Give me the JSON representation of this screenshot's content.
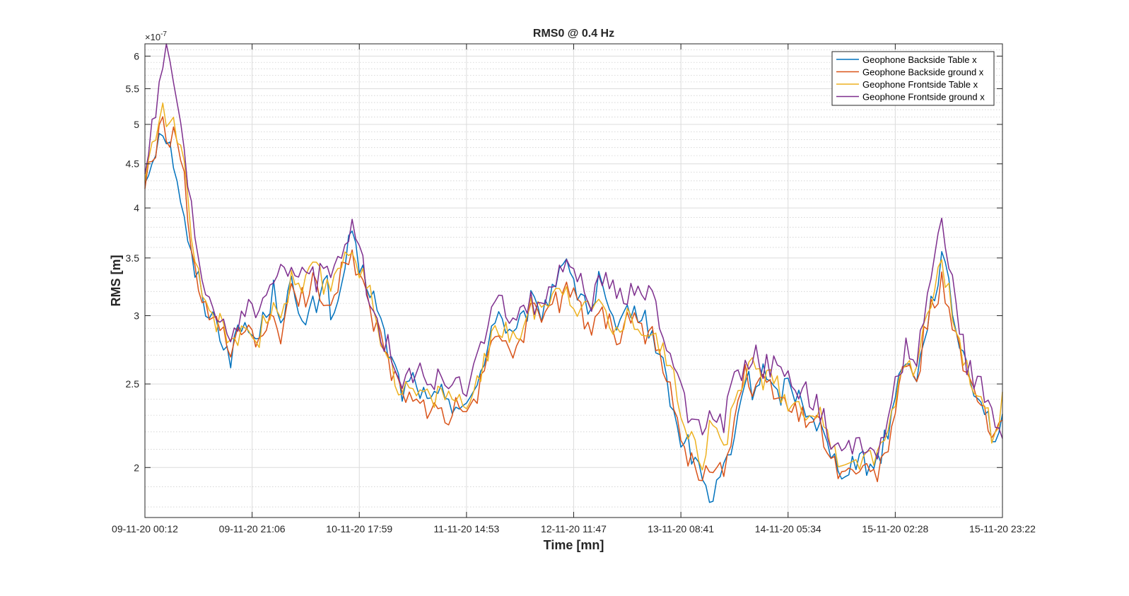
{
  "chart_data": {
    "type": "line",
    "title": "RMS0 @ 0.4 Hz",
    "xlabel": "Time [mn]",
    "ylabel": "RMS [m]",
    "y_scale": "log",
    "y_exponent_label": "×10",
    "y_exponent_power": "-7",
    "ylim": [
      1.75,
      6.2
    ],
    "y_ticks": [
      2,
      2.5,
      3,
      3.5,
      4,
      4.5,
      5,
      5.5,
      6
    ],
    "y_tick_labels": [
      "2",
      "2.5",
      "3",
      "3.5",
      "4",
      "4.5",
      "5",
      "5.5",
      "6"
    ],
    "x_tick_labels": [
      "09-11-20 00:12",
      "09-11-20 21:06",
      "10-11-20 17:59",
      "11-11-20 14:53",
      "12-11-20 11:47",
      "13-11-20 08:41",
      "14-11-20 05:34",
      "15-11-20 02:28",
      "15-11-20 23:22"
    ],
    "grid": true,
    "minor_grid": true,
    "legend_position": "top-right",
    "series": [
      {
        "name": "Geophone Backside Table x",
        "color": "#0072BD",
        "anchors": [
          [
            0,
            4.3
          ],
          [
            0.02,
            5.0
          ],
          [
            0.035,
            4.5
          ],
          [
            0.05,
            3.6
          ],
          [
            0.07,
            3.1
          ],
          [
            0.09,
            2.85
          ],
          [
            0.1,
            2.7
          ],
          [
            0.115,
            2.95
          ],
          [
            0.13,
            2.8
          ],
          [
            0.15,
            3.2
          ],
          [
            0.16,
            3.0
          ],
          [
            0.17,
            3.3
          ],
          [
            0.18,
            2.9
          ],
          [
            0.2,
            3.1
          ],
          [
            0.21,
            3.4
          ],
          [
            0.22,
            2.9
          ],
          [
            0.23,
            3.3
          ],
          [
            0.24,
            3.7
          ],
          [
            0.25,
            3.4
          ],
          [
            0.265,
            3.2
          ],
          [
            0.28,
            2.8
          ],
          [
            0.3,
            2.45
          ],
          [
            0.315,
            2.55
          ],
          [
            0.33,
            2.35
          ],
          [
            0.35,
            2.45
          ],
          [
            0.36,
            2.38
          ],
          [
            0.38,
            2.35
          ],
          [
            0.39,
            2.55
          ],
          [
            0.41,
            3.05
          ],
          [
            0.43,
            2.8
          ],
          [
            0.45,
            3.1
          ],
          [
            0.46,
            3.0
          ],
          [
            0.48,
            3.3
          ],
          [
            0.49,
            3.6
          ],
          [
            0.5,
            3.2
          ],
          [
            0.51,
            3.2
          ],
          [
            0.52,
            3.0
          ],
          [
            0.53,
            3.3
          ],
          [
            0.55,
            2.8
          ],
          [
            0.565,
            3.1
          ],
          [
            0.575,
            3.0
          ],
          [
            0.59,
            2.9
          ],
          [
            0.61,
            2.5
          ],
          [
            0.62,
            2.2
          ],
          [
            0.635,
            2.1
          ],
          [
            0.65,
            1.95
          ],
          [
            0.66,
            1.8
          ],
          [
            0.675,
            2.0
          ],
          [
            0.685,
            2.1
          ],
          [
            0.7,
            2.55
          ],
          [
            0.71,
            2.45
          ],
          [
            0.72,
            2.6
          ],
          [
            0.735,
            2.4
          ],
          [
            0.75,
            2.5
          ],
          [
            0.765,
            2.4
          ],
          [
            0.78,
            2.3
          ],
          [
            0.79,
            2.2
          ],
          [
            0.8,
            2.05
          ],
          [
            0.815,
            2.0
          ],
          [
            0.83,
            2.05
          ],
          [
            0.845,
            2.0
          ],
          [
            0.86,
            2.1
          ],
          [
            0.87,
            2.3
          ],
          [
            0.88,
            2.55
          ],
          [
            0.89,
            2.75
          ],
          [
            0.9,
            2.5
          ],
          [
            0.91,
            2.9
          ],
          [
            0.93,
            3.5
          ],
          [
            0.94,
            3.1
          ],
          [
            0.95,
            2.8
          ],
          [
            0.96,
            2.6
          ],
          [
            0.97,
            2.45
          ],
          [
            0.98,
            2.35
          ],
          [
            0.99,
            2.15
          ],
          [
            1.0,
            2.25
          ]
        ]
      },
      {
        "name": "Geophone Backside ground x",
        "color": "#D95319",
        "anchors": [
          [
            0,
            4.25
          ],
          [
            0.02,
            4.95
          ],
          [
            0.035,
            4.8
          ],
          [
            0.045,
            4.4
          ],
          [
            0.055,
            3.4
          ],
          [
            0.07,
            3.05
          ],
          [
            0.09,
            2.85
          ],
          [
            0.1,
            2.7
          ],
          [
            0.115,
            2.9
          ],
          [
            0.13,
            2.75
          ],
          [
            0.15,
            3.05
          ],
          [
            0.16,
            2.8
          ],
          [
            0.17,
            3.2
          ],
          [
            0.18,
            3.1
          ],
          [
            0.2,
            3.3
          ],
          [
            0.21,
            3.1
          ],
          [
            0.22,
            3.2
          ],
          [
            0.23,
            3.4
          ],
          [
            0.24,
            3.6
          ],
          [
            0.25,
            3.3
          ],
          [
            0.265,
            3.0
          ],
          [
            0.28,
            2.7
          ],
          [
            0.3,
            2.4
          ],
          [
            0.315,
            2.45
          ],
          [
            0.33,
            2.3
          ],
          [
            0.35,
            2.3
          ],
          [
            0.36,
            2.35
          ],
          [
            0.38,
            2.33
          ],
          [
            0.39,
            2.45
          ],
          [
            0.41,
            2.9
          ],
          [
            0.43,
            2.7
          ],
          [
            0.45,
            3.0
          ],
          [
            0.46,
            3.0
          ],
          [
            0.48,
            3.1
          ],
          [
            0.49,
            3.2
          ],
          [
            0.5,
            3.2
          ],
          [
            0.51,
            3.0
          ],
          [
            0.52,
            2.9
          ],
          [
            0.53,
            3.1
          ],
          [
            0.55,
            2.8
          ],
          [
            0.565,
            3.0
          ],
          [
            0.575,
            2.9
          ],
          [
            0.59,
            2.85
          ],
          [
            0.61,
            2.5
          ],
          [
            0.62,
            2.3
          ],
          [
            0.635,
            2.05
          ],
          [
            0.65,
            1.9
          ],
          [
            0.66,
            2.05
          ],
          [
            0.675,
            2.0
          ],
          [
            0.685,
            2.2
          ],
          [
            0.7,
            2.6
          ],
          [
            0.71,
            2.4
          ],
          [
            0.72,
            2.5
          ],
          [
            0.735,
            2.45
          ],
          [
            0.75,
            2.35
          ],
          [
            0.765,
            2.3
          ],
          [
            0.78,
            2.3
          ],
          [
            0.79,
            2.2
          ],
          [
            0.8,
            2.05
          ],
          [
            0.815,
            1.95
          ],
          [
            0.83,
            2.0
          ],
          [
            0.845,
            1.95
          ],
          [
            0.86,
            2.0
          ],
          [
            0.87,
            2.2
          ],
          [
            0.88,
            2.5
          ],
          [
            0.89,
            2.6
          ],
          [
            0.9,
            2.5
          ],
          [
            0.91,
            2.9
          ],
          [
            0.93,
            3.3
          ],
          [
            0.94,
            3.0
          ],
          [
            0.95,
            2.7
          ],
          [
            0.96,
            2.5
          ],
          [
            0.97,
            2.4
          ],
          [
            0.98,
            2.3
          ],
          [
            0.99,
            2.1
          ],
          [
            1.0,
            2.3
          ]
        ]
      },
      {
        "name": "Geophone Frontside Table x",
        "color": "#EDB120",
        "anchors": [
          [
            0,
            4.35
          ],
          [
            0.02,
            5.2
          ],
          [
            0.035,
            5.0
          ],
          [
            0.045,
            4.5
          ],
          [
            0.055,
            3.5
          ],
          [
            0.07,
            3.1
          ],
          [
            0.09,
            2.9
          ],
          [
            0.1,
            2.75
          ],
          [
            0.115,
            2.95
          ],
          [
            0.13,
            2.8
          ],
          [
            0.15,
            3.1
          ],
          [
            0.16,
            3.0
          ],
          [
            0.17,
            3.3
          ],
          [
            0.18,
            3.2
          ],
          [
            0.2,
            3.4
          ],
          [
            0.21,
            3.2
          ],
          [
            0.22,
            3.3
          ],
          [
            0.23,
            3.5
          ],
          [
            0.24,
            3.65
          ],
          [
            0.25,
            3.4
          ],
          [
            0.265,
            3.1
          ],
          [
            0.28,
            2.75
          ],
          [
            0.3,
            2.45
          ],
          [
            0.315,
            2.45
          ],
          [
            0.33,
            2.4
          ],
          [
            0.35,
            2.45
          ],
          [
            0.36,
            2.4
          ],
          [
            0.38,
            2.38
          ],
          [
            0.39,
            2.5
          ],
          [
            0.41,
            2.95
          ],
          [
            0.43,
            2.8
          ],
          [
            0.45,
            3.05
          ],
          [
            0.46,
            3.1
          ],
          [
            0.48,
            3.2
          ],
          [
            0.49,
            3.3
          ],
          [
            0.5,
            3.1
          ],
          [
            0.51,
            3.1
          ],
          [
            0.52,
            3.0
          ],
          [
            0.53,
            3.15
          ],
          [
            0.55,
            2.85
          ],
          [
            0.565,
            3.0
          ],
          [
            0.575,
            2.95
          ],
          [
            0.59,
            2.9
          ],
          [
            0.61,
            2.65
          ],
          [
            0.62,
            2.45
          ],
          [
            0.635,
            2.2
          ],
          [
            0.65,
            2.05
          ],
          [
            0.66,
            2.25
          ],
          [
            0.675,
            2.1
          ],
          [
            0.685,
            2.3
          ],
          [
            0.7,
            2.6
          ],
          [
            0.71,
            2.65
          ],
          [
            0.72,
            2.55
          ],
          [
            0.735,
            2.5
          ],
          [
            0.75,
            2.4
          ],
          [
            0.765,
            2.35
          ],
          [
            0.78,
            2.35
          ],
          [
            0.79,
            2.25
          ],
          [
            0.8,
            2.1
          ],
          [
            0.815,
            2.05
          ],
          [
            0.83,
            2.05
          ],
          [
            0.845,
            2.05
          ],
          [
            0.86,
            2.1
          ],
          [
            0.87,
            2.3
          ],
          [
            0.88,
            2.55
          ],
          [
            0.89,
            2.7
          ],
          [
            0.9,
            2.6
          ],
          [
            0.91,
            3.0
          ],
          [
            0.93,
            3.4
          ],
          [
            0.94,
            3.1
          ],
          [
            0.95,
            2.8
          ],
          [
            0.96,
            2.55
          ],
          [
            0.97,
            2.4
          ],
          [
            0.98,
            2.35
          ],
          [
            0.99,
            2.15
          ],
          [
            1.0,
            2.4
          ]
        ]
      },
      {
        "name": "Geophone Frontside ground x",
        "color": "#7E2F8E",
        "anchors": [
          [
            0,
            4.45
          ],
          [
            0.015,
            5.3
          ],
          [
            0.025,
            6.1
          ],
          [
            0.035,
            5.5
          ],
          [
            0.045,
            4.6
          ],
          [
            0.05,
            4.2
          ],
          [
            0.06,
            3.6
          ],
          [
            0.07,
            3.2
          ],
          [
            0.085,
            3.0
          ],
          [
            0.1,
            2.85
          ],
          [
            0.115,
            3.05
          ],
          [
            0.13,
            3.0
          ],
          [
            0.14,
            3.2
          ],
          [
            0.15,
            3.2
          ],
          [
            0.16,
            3.5
          ],
          [
            0.17,
            3.3
          ],
          [
            0.18,
            3.4
          ],
          [
            0.2,
            3.3
          ],
          [
            0.21,
            3.5
          ],
          [
            0.22,
            3.3
          ],
          [
            0.23,
            3.5
          ],
          [
            0.24,
            3.8
          ],
          [
            0.25,
            3.6
          ],
          [
            0.265,
            3.0
          ],
          [
            0.28,
            2.8
          ],
          [
            0.3,
            2.55
          ],
          [
            0.315,
            2.6
          ],
          [
            0.33,
            2.5
          ],
          [
            0.35,
            2.55
          ],
          [
            0.36,
            2.45
          ],
          [
            0.375,
            2.5
          ],
          [
            0.39,
            2.7
          ],
          [
            0.41,
            3.1
          ],
          [
            0.43,
            3.0
          ],
          [
            0.45,
            3.1
          ],
          [
            0.46,
            3.1
          ],
          [
            0.48,
            3.3
          ],
          [
            0.49,
            3.4
          ],
          [
            0.5,
            3.3
          ],
          [
            0.51,
            3.3
          ],
          [
            0.52,
            3.1
          ],
          [
            0.53,
            3.3
          ],
          [
            0.55,
            3.2
          ],
          [
            0.565,
            3.2
          ],
          [
            0.575,
            3.2
          ],
          [
            0.59,
            3.2
          ],
          [
            0.6,
            2.9
          ],
          [
            0.61,
            2.8
          ],
          [
            0.62,
            2.5
          ],
          [
            0.635,
            2.3
          ],
          [
            0.65,
            2.2
          ],
          [
            0.66,
            2.35
          ],
          [
            0.675,
            2.25
          ],
          [
            0.685,
            2.5
          ],
          [
            0.7,
            2.65
          ],
          [
            0.71,
            2.75
          ],
          [
            0.72,
            2.6
          ],
          [
            0.735,
            2.65
          ],
          [
            0.75,
            2.55
          ],
          [
            0.765,
            2.45
          ],
          [
            0.78,
            2.4
          ],
          [
            0.79,
            2.3
          ],
          [
            0.8,
            2.1
          ],
          [
            0.815,
            2.05
          ],
          [
            0.83,
            2.15
          ],
          [
            0.845,
            2.05
          ],
          [
            0.86,
            2.15
          ],
          [
            0.87,
            2.35
          ],
          [
            0.88,
            2.6
          ],
          [
            0.89,
            2.8
          ],
          [
            0.9,
            2.6
          ],
          [
            0.91,
            3.1
          ],
          [
            0.93,
            3.8
          ],
          [
            0.94,
            3.3
          ],
          [
            0.95,
            2.9
          ],
          [
            0.96,
            2.6
          ],
          [
            0.97,
            2.5
          ],
          [
            0.98,
            2.45
          ],
          [
            0.99,
            2.3
          ],
          [
            1.0,
            2.2
          ]
        ]
      }
    ]
  }
}
